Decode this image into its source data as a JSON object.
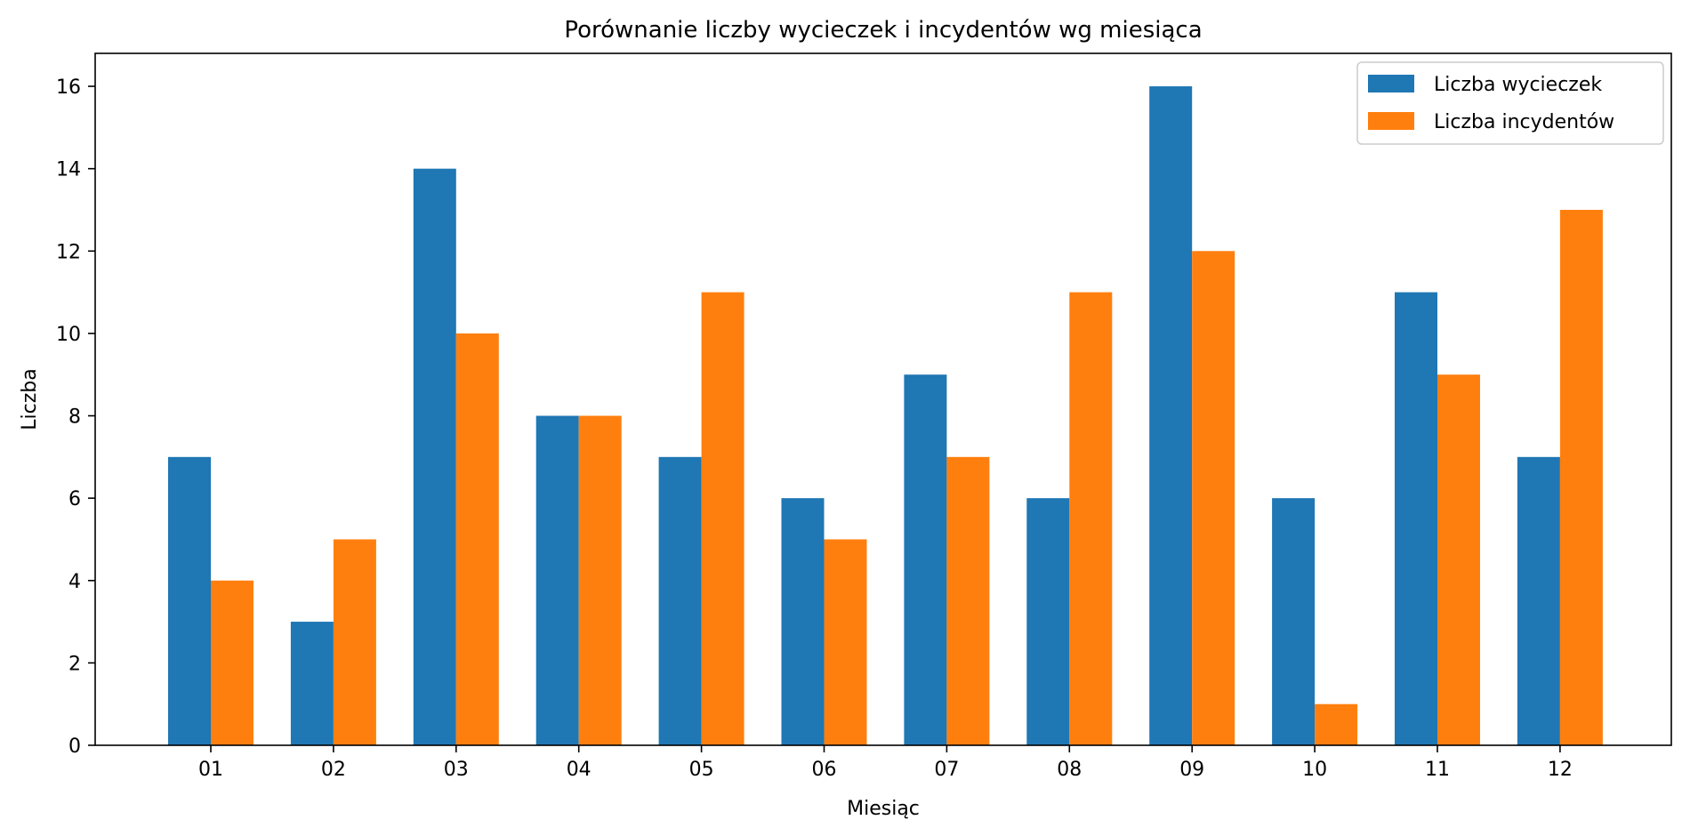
{
  "chart_data": {
    "type": "bar",
    "title": "Porównanie liczby wycieczek i incydentów wg miesiąca",
    "xlabel": "Miesiąc",
    "ylabel": "Liczba",
    "categories": [
      "01",
      "02",
      "03",
      "04",
      "05",
      "06",
      "07",
      "08",
      "09",
      "10",
      "11",
      "12"
    ],
    "series": [
      {
        "name": "Liczba wycieczek",
        "color": "#1f77b4",
        "values": [
          7,
          3,
          14,
          8,
          7,
          6,
          9,
          6,
          16,
          6,
          11,
          7
        ]
      },
      {
        "name": "Liczba incydentów",
        "color": "#ff7f0e",
        "values": [
          4,
          5,
          10,
          8,
          11,
          5,
          7,
          11,
          12,
          1,
          9,
          13
        ]
      }
    ],
    "ylim": [
      0,
      16.8
    ],
    "yticks": [
      0,
      2,
      4,
      6,
      8,
      10,
      12,
      14,
      16
    ],
    "grid": false,
    "legend_position": "top-right"
  }
}
